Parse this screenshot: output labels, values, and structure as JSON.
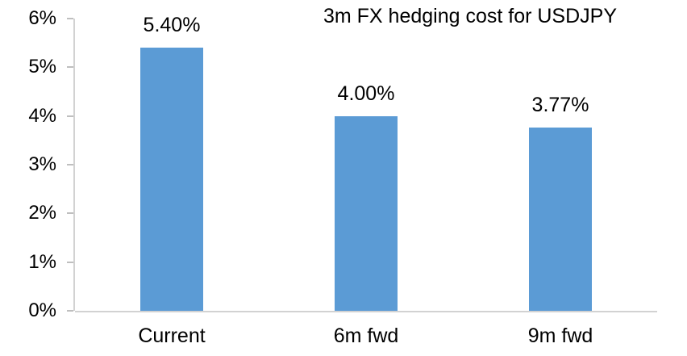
{
  "chart_data": {
    "type": "bar",
    "title": "3m FX hedging cost for USDJPY",
    "categories": [
      "Current",
      "6m fwd",
      "9m fwd"
    ],
    "values": [
      5.4,
      4.0,
      3.77
    ],
    "value_labels": [
      "5.40%",
      "4.00%",
      "3.77%"
    ],
    "ytick_labels": [
      "0%",
      "1%",
      "2%",
      "3%",
      "4%",
      "5%",
      "6%"
    ],
    "ytick_values": [
      0,
      1,
      2,
      3,
      4,
      5,
      6
    ],
    "ylim": [
      0,
      6
    ],
    "xlabel": "",
    "ylabel": "",
    "grid": false,
    "legend_position": "none",
    "colors": {
      "bar": "#5B9BD5",
      "axis_line": "#D2D2D2",
      "tick": "#BFBFBF",
      "text": "#000000",
      "background": "#FFFFFF"
    }
  }
}
